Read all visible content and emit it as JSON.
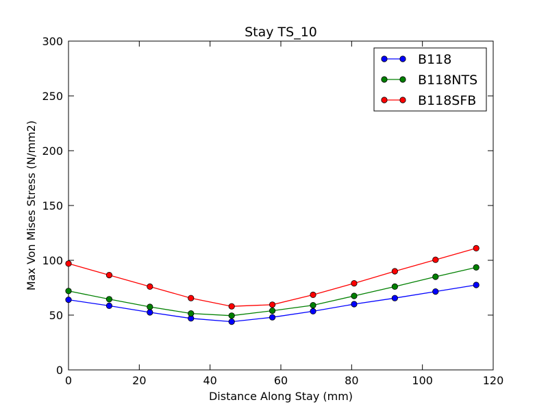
{
  "chart_data": {
    "type": "line",
    "title": "Stay TS_10",
    "xlabel": "Distance Along Stay (mm)",
    "ylabel": "Max Von Mises Stress (N/mm2)",
    "xlim": [
      0,
      120
    ],
    "ylim": [
      0,
      300
    ],
    "xticks": [
      "0",
      "20",
      "40",
      "60",
      "80",
      "100",
      "120"
    ],
    "yticks": [
      "0",
      "50",
      "100",
      "150",
      "200",
      "250",
      "300"
    ],
    "x": [
      0,
      11.5,
      23,
      34.6,
      46.1,
      57.6,
      69.1,
      80.7,
      92.2,
      103.7,
      115.2
    ],
    "series": [
      {
        "name": "B118",
        "color": "#0000ff",
        "values": [
          64,
          58.5,
          52.5,
          47,
          44,
          48,
          53.5,
          60,
          65.5,
          71.5,
          77.5
        ]
      },
      {
        "name": "B118NTS",
        "color": "#008000",
        "values": [
          72,
          64.5,
          57.5,
          51.5,
          49.5,
          54,
          59,
          67.5,
          76,
          85,
          93.5
        ]
      },
      {
        "name": "B118SFB",
        "color": "#ff0000",
        "values": [
          97,
          86.5,
          76,
          65.5,
          58,
          59.5,
          68.5,
          79,
          90,
          100.5,
          111
        ]
      }
    ],
    "grid": false,
    "legend_position": "top-right"
  }
}
